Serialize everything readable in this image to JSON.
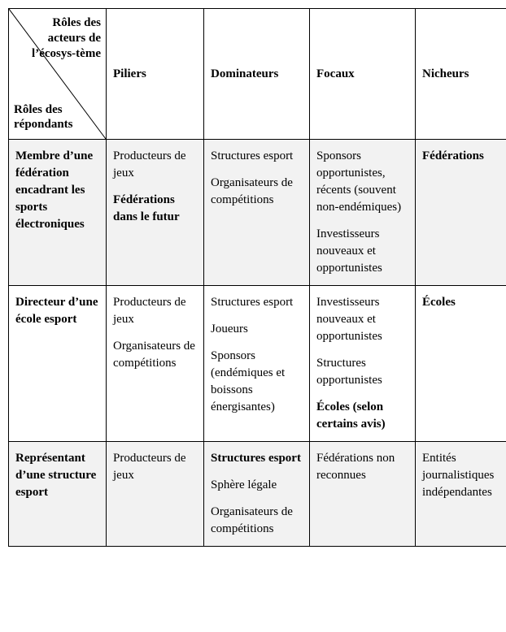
{
  "corner": {
    "top": "Rôles des acteurs de l’écosys-tème",
    "bottom": "Rôles des répondants"
  },
  "columns": [
    "Piliers",
    "Dominateurs",
    "Focaux",
    "Nicheurs"
  ],
  "rows": [
    {
      "header": "Membre d’une fédération encadrant les sports électroniques",
      "altRow": true,
      "cells": {
        "Piliers": [
          {
            "text": "Producteurs de jeux",
            "bold": false
          },
          {
            "text": "Fédérations dans le futur",
            "bold": true
          }
        ],
        "Dominateurs": [
          {
            "text": "Structures esport",
            "bold": false
          },
          {
            "text": "Organisateurs de compétitions",
            "bold": false
          }
        ],
        "Focaux": [
          {
            "text": "Sponsors opportunistes, récents (souvent non-endémiques)",
            "bold": false
          },
          {
            "text": "Investisseurs nouveaux et opportunistes",
            "bold": false
          }
        ],
        "Nicheurs": [
          {
            "text": "Fédérations",
            "bold": true
          }
        ]
      }
    },
    {
      "header": "Directeur d’une école esport",
      "altRow": false,
      "cells": {
        "Piliers": [
          {
            "text": "Producteurs de jeux",
            "bold": false
          },
          {
            "text": "Organisateurs de compétitions",
            "bold": false
          }
        ],
        "Dominateurs": [
          {
            "text": "Structures esport",
            "bold": false
          },
          {
            "text": "Joueurs",
            "bold": false
          },
          {
            "text": "Sponsors (endémiques et boissons énergisantes)",
            "bold": false
          }
        ],
        "Focaux": [
          {
            "text": "Investisseurs nouveaux et opportunistes",
            "bold": false
          },
          {
            "text": "Structures opportunistes",
            "bold": false
          },
          {
            "text": "Écoles (selon certains avis)",
            "bold": true
          }
        ],
        "Nicheurs": [
          {
            "text": "Écoles",
            "bold": true
          }
        ]
      }
    },
    {
      "header": "Représentant d’une structure esport",
      "altRow": true,
      "cells": {
        "Piliers": [
          {
            "text": "Producteurs de jeux",
            "bold": false
          }
        ],
        "Dominateurs": [
          {
            "text": "Structures esport",
            "bold": true
          },
          {
            "text": "Sphère légale",
            "bold": false
          },
          {
            "text": "Organisateurs de compétitions",
            "bold": false
          }
        ],
        "Focaux": [
          {
            "text": "Fédérations non reconnues",
            "bold": false
          }
        ],
        "Nicheurs": [
          {
            "text": "Entités journalistiques indépendantes",
            "bold": false
          }
        ]
      }
    }
  ],
  "style": {
    "alt_bg": "#f2f2f2",
    "border_color": "#000000",
    "font_family": "Times New Roman",
    "font_size_pt": 11
  }
}
